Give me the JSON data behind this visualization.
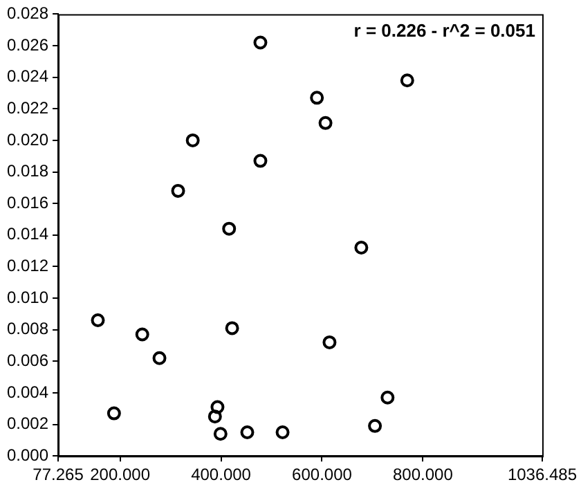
{
  "chart_data": {
    "type": "scatter",
    "annotations": [
      "r = 0.226 - r^2 = 0.051"
    ],
    "marker": "circle",
    "grid": false,
    "legend": false,
    "xlim": [
      77.265,
      1036.485
    ],
    "xticks": [
      {
        "value": 77.265,
        "label": "77.265"
      },
      {
        "value": 200,
        "label": "200.000"
      },
      {
        "value": 400,
        "label": "400.000"
      },
      {
        "value": 600,
        "label": "600.000"
      },
      {
        "value": 800,
        "label": "800.000"
      },
      {
        "value": 1036.485,
        "label": "1036.485"
      }
    ],
    "ylim": [
      0,
      0.028
    ],
    "yticks": [
      {
        "value": 0,
        "label": "0.000"
      },
      {
        "value": 0.002,
        "label": "0.002"
      },
      {
        "value": 0.004,
        "label": "0.004"
      },
      {
        "value": 0.006,
        "label": "0.006"
      },
      {
        "value": 0.008,
        "label": "0.008"
      },
      {
        "value": 0.01,
        "label": "0.010"
      },
      {
        "value": 0.012,
        "label": "0.012"
      },
      {
        "value": 0.014,
        "label": "0.014"
      },
      {
        "value": 0.016,
        "label": "0.016"
      },
      {
        "value": 0.018,
        "label": "0.018"
      },
      {
        "value": 0.02,
        "label": "0.020"
      },
      {
        "value": 0.022,
        "label": "0.022"
      },
      {
        "value": 0.024,
        "label": "0.024"
      },
      {
        "value": 0.026,
        "label": "0.026"
      },
      {
        "value": 0.028,
        "label": "0.028"
      }
    ],
    "series": [
      {
        "color": "#000000",
        "x": [
          478,
          769,
          590,
          607,
          344,
          478,
          315,
          416,
          678,
          156,
          244,
          278,
          422,
          615,
          188,
          393,
          388,
          399,
          452,
          522,
          705,
          730
        ],
        "values": [
          0.0262,
          0.0238,
          0.0227,
          0.0211,
          0.02,
          0.0187,
          0.0168,
          0.0144,
          0.0132,
          0.0086,
          0.0077,
          0.0062,
          0.0081,
          0.0072,
          0.0027,
          0.0031,
          0.0025,
          0.0014,
          0.0015,
          0.0015,
          0.0019,
          0.0037
        ]
      }
    ]
  }
}
